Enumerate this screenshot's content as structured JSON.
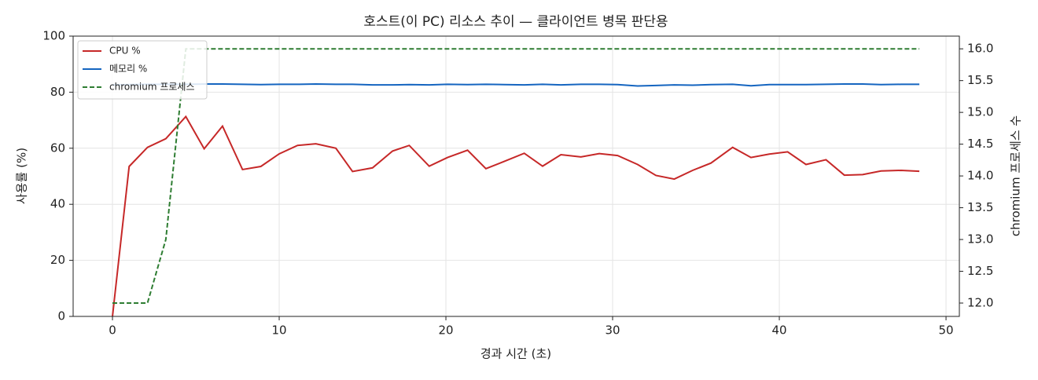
{
  "chart_data": {
    "type": "line",
    "title": "호스트(이 PC) 리소스 추이 — 클라이언트 병목 판단용",
    "xlabel": "경과 시간 (초)",
    "ylabel": "사용률 (%)",
    "y2label": "chromium 프로세스 수",
    "x": [
      0,
      1.0,
      2.1,
      3.2,
      4.4,
      5.5,
      6.6,
      7.8,
      8.9,
      10.0,
      11.1,
      12.2,
      13.4,
      14.4,
      15.6,
      16.8,
      17.8,
      19.0,
      20.1,
      21.3,
      22.4,
      23.5,
      24.7,
      25.8,
      26.9,
      28.1,
      29.2,
      30.3,
      31.5,
      32.6,
      33.7,
      34.8,
      35.9,
      37.2,
      38.3,
      39.4,
      40.5,
      41.6,
      42.8,
      43.9,
      45.0,
      46.1,
      47.3,
      48.4
    ],
    "series": [
      {
        "name": "CPU %",
        "color": "#c62828",
        "dash": false,
        "values": [
          0,
          53.5,
          60.3,
          63.4,
          71.3,
          59.8,
          67.9,
          52.4,
          53.5,
          58.0,
          61.0,
          61.6,
          60.0,
          51.7,
          53.0,
          59.0,
          61.0,
          53.6,
          56.7,
          59.3,
          52.7,
          55.3,
          58.2,
          53.6,
          57.7,
          56.9,
          58.1,
          57.4,
          54.2,
          50.3,
          49.0,
          52.1,
          54.7,
          60.3,
          56.7,
          57.9,
          58.7,
          54.2,
          55.9,
          50.4,
          50.6,
          51.9,
          52.1,
          51.8
        ]
      },
      {
        "name": "메모리 %",
        "color": "#1565c0",
        "dash": false,
        "values": [
          82.6,
          82.7,
          82.8,
          82.8,
          82.8,
          82.9,
          82.9,
          82.8,
          82.7,
          82.8,
          82.8,
          82.9,
          82.8,
          82.8,
          82.6,
          82.6,
          82.7,
          82.6,
          82.8,
          82.7,
          82.8,
          82.7,
          82.6,
          82.8,
          82.6,
          82.8,
          82.8,
          82.7,
          82.2,
          82.4,
          82.6,
          82.5,
          82.7,
          82.8,
          82.3,
          82.7,
          82.7,
          82.7,
          82.8,
          82.9,
          82.9,
          82.7,
          82.8,
          82.8
        ]
      },
      {
        "name": "chromium 프로세스",
        "color": "#2e7d32",
        "dash": true,
        "axis": "y2",
        "values": [
          12,
          12,
          12,
          13,
          16,
          16,
          16,
          16,
          16,
          16,
          16,
          16,
          16,
          16,
          16,
          16,
          16,
          16,
          16,
          16,
          16,
          16,
          16,
          16,
          16,
          16,
          16,
          16,
          16,
          16,
          16,
          16,
          16,
          16,
          16,
          16,
          16,
          16,
          16,
          16,
          16,
          16,
          16,
          16
        ]
      }
    ],
    "xlim": [
      -2.36,
      50.8
    ],
    "xticks": [
      0,
      10,
      20,
      30,
      40,
      50
    ],
    "ylim": [
      0,
      100
    ],
    "yticks": [
      0,
      20,
      40,
      60,
      80,
      100
    ],
    "y2lim": [
      11.79,
      16.2
    ],
    "y2ticks": [
      {
        "value": 12,
        "label": "12.0"
      },
      12.5,
      {
        "value": 13,
        "label": "13.0"
      },
      13.5,
      {
        "value": 14,
        "label": "14.0"
      },
      14.5,
      {
        "value": 15,
        "label": "15.0"
      },
      15.5,
      {
        "value": 16,
        "label": "16.0"
      }
    ],
    "grid": true,
    "legend": "upper-left"
  }
}
